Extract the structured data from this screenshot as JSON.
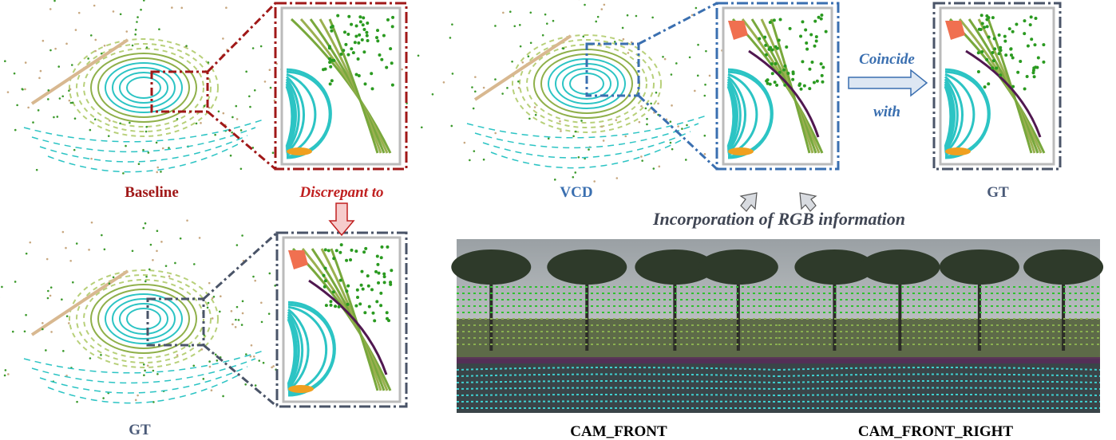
{
  "baseline": {
    "label": "Baseline",
    "annotation": "Discrepant to"
  },
  "ground_truth_left": {
    "label": "GT"
  },
  "vcd": {
    "label": "VCD",
    "annotation": "Incorporation of RGB information",
    "arrow_top": "Coincide",
    "arrow_bottom": "with"
  },
  "ground_truth_right": {
    "label": "GT"
  },
  "cameras": [
    "CAM_FRONT",
    "CAM_FRONT_RIGHT"
  ]
}
